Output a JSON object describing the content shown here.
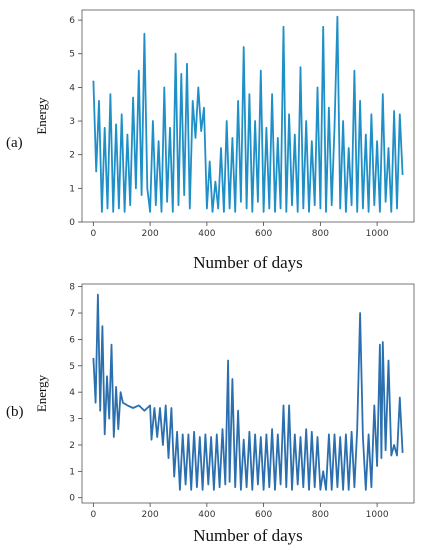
{
  "figure": {
    "label_a": "(a)",
    "label_b": "(b)"
  },
  "chart_data": [
    {
      "type": "line",
      "panel": "(a)",
      "title": "",
      "xlabel": "Number of days",
      "ylabel": "Energy",
      "xlim": [
        -40,
        1130
      ],
      "ylim": [
        0,
        6.3
      ],
      "xticks": [
        0,
        200,
        400,
        600,
        800,
        1000
      ],
      "yticks": [
        0,
        1,
        2,
        3,
        4,
        5,
        6
      ],
      "grid": false,
      "color": "#1f8fc7",
      "series": [
        {
          "x": [
            0,
            10,
            20,
            30,
            40,
            50,
            60,
            70,
            80,
            90,
            100,
            110,
            120,
            130,
            140,
            150,
            160,
            170,
            180,
            190,
            200,
            210,
            220,
            230,
            240,
            250,
            260,
            270,
            280,
            290,
            300,
            310,
            320,
            330,
            340,
            350,
            360,
            370,
            380,
            390,
            400,
            410,
            420,
            430,
            440,
            450,
            460,
            470,
            480,
            490,
            500,
            510,
            520,
            530,
            540,
            550,
            560,
            570,
            580,
            590,
            600,
            610,
            620,
            630,
            640,
            650,
            660,
            670,
            680,
            690,
            700,
            710,
            720,
            730,
            740,
            750,
            760,
            770,
            780,
            790,
            800,
            810,
            820,
            830,
            840,
            850,
            860,
            870,
            880,
            890,
            900,
            910,
            920,
            930,
            940,
            950,
            960,
            970,
            980,
            990,
            1000,
            1010,
            1020,
            1030,
            1040,
            1050,
            1060,
            1070,
            1080,
            1090
          ],
          "values": [
            4.2,
            1.5,
            3.6,
            0.3,
            2.8,
            0.4,
            3.8,
            0.3,
            2.9,
            0.4,
            3.2,
            0.3,
            2.6,
            0.5,
            3.7,
            1.0,
            4.5,
            0.8,
            5.6,
            1.0,
            0.3,
            3.0,
            0.5,
            2.4,
            0.3,
            4.0,
            0.6,
            2.8,
            0.3,
            5.0,
            0.5,
            4.4,
            0.8,
            4.7,
            0.4,
            3.6,
            2.5,
            4.0,
            2.7,
            3.4,
            0.4,
            1.8,
            0.3,
            1.2,
            0.4,
            2.2,
            0.3,
            3.0,
            0.4,
            2.5,
            0.3,
            3.6,
            0.6,
            5.2,
            0.4,
            3.8,
            0.3,
            3.0,
            0.6,
            4.5,
            0.3,
            2.8,
            0.4,
            3.8,
            0.3,
            2.5,
            0.4,
            5.8,
            0.3,
            3.2,
            0.5,
            2.6,
            0.3,
            4.6,
            0.4,
            3.0,
            0.3,
            2.4,
            0.5,
            4.0,
            0.4,
            5.8,
            0.3,
            3.4,
            0.5,
            2.8,
            6.1,
            0.4,
            3.0,
            0.3,
            2.2,
            0.5,
            4.5,
            0.3,
            3.6,
            0.4,
            2.6,
            0.3,
            3.2,
            0.5,
            2.4,
            0.3,
            3.8,
            0.6,
            2.2,
            0.3,
            3.3,
            0.4,
            3.2,
            1.4
          ]
        }
      ]
    },
    {
      "type": "line",
      "panel": "(b)",
      "title": "",
      "xlabel": "Number of days",
      "ylabel": "Energy",
      "xlim": [
        -40,
        1130
      ],
      "ylim": [
        -0.2,
        8.1
      ],
      "xticks": [
        0,
        200,
        400,
        600,
        800,
        1000
      ],
      "yticks": [
        0,
        1,
        2,
        3,
        4,
        5,
        6,
        7,
        8
      ],
      "grid": false,
      "color": "#2b6fae",
      "series": [
        {
          "x": [
            0,
            8,
            16,
            24,
            32,
            40,
            48,
            56,
            64,
            72,
            80,
            88,
            96,
            104,
            120,
            140,
            160,
            180,
            200,
            205,
            215,
            225,
            235,
            245,
            255,
            265,
            275,
            285,
            295,
            305,
            315,
            325,
            335,
            345,
            355,
            365,
            375,
            385,
            395,
            405,
            415,
            425,
            435,
            445,
            455,
            465,
            475,
            480,
            490,
            500,
            510,
            520,
            530,
            540,
            550,
            560,
            570,
            580,
            590,
            600,
            610,
            620,
            630,
            640,
            650,
            660,
            670,
            680,
            690,
            700,
            710,
            720,
            730,
            740,
            750,
            760,
            770,
            780,
            790,
            800,
            810,
            820,
            830,
            840,
            850,
            860,
            870,
            880,
            890,
            900,
            910,
            920,
            930,
            940,
            950,
            960,
            970,
            980,
            990,
            1000,
            1010,
            1015,
            1020,
            1030,
            1040,
            1050,
            1060,
            1070,
            1080,
            1090
          ],
          "values": [
            5.3,
            3.6,
            7.7,
            3.3,
            6.5,
            2.4,
            4.6,
            3.0,
            5.8,
            2.3,
            4.2,
            2.6,
            4.0,
            3.6,
            3.5,
            3.4,
            3.5,
            3.3,
            3.5,
            2.2,
            3.4,
            2.3,
            3.4,
            2.0,
            3.5,
            1.5,
            3.4,
            0.8,
            2.5,
            0.3,
            2.4,
            0.5,
            2.4,
            0.3,
            2.5,
            0.4,
            2.3,
            0.3,
            2.4,
            0.5,
            2.3,
            0.3,
            2.4,
            0.4,
            2.6,
            0.5,
            5.2,
            0.6,
            4.5,
            0.4,
            3.3,
            0.3,
            2.2,
            0.4,
            2.5,
            0.3,
            2.4,
            0.5,
            2.3,
            0.3,
            2.4,
            0.4,
            2.6,
            0.3,
            2.4,
            0.5,
            3.5,
            0.4,
            3.5,
            0.3,
            2.4,
            0.5,
            2.3,
            0.4,
            2.6,
            0.3,
            2.5,
            0.4,
            2.3,
            0.3,
            1.0,
            0.3,
            2.4,
            0.3,
            2.4,
            0.4,
            2.3,
            0.3,
            2.4,
            0.3,
            2.5,
            0.4,
            2.6,
            7.0,
            2.3,
            0.3,
            2.4,
            0.4,
            3.5,
            1.2,
            5.8,
            1.5,
            5.9,
            1.8,
            5.2,
            1.6,
            2.0,
            1.6,
            3.8,
            1.7
          ]
        }
      ]
    }
  ]
}
